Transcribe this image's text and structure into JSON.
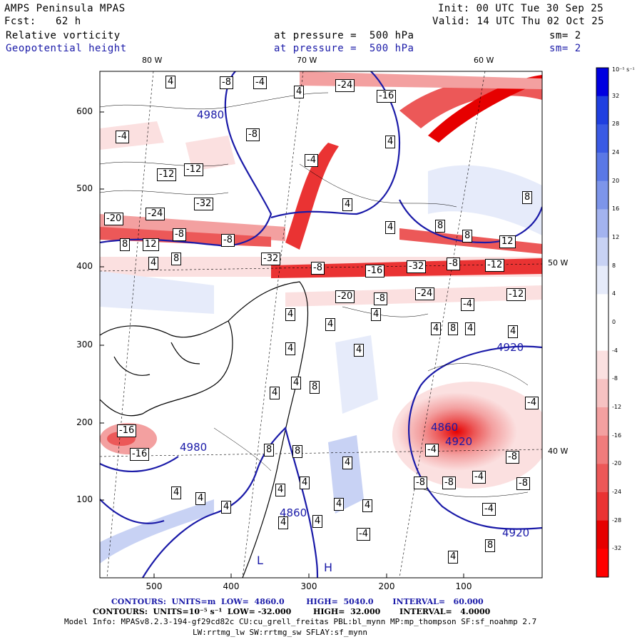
{
  "header": {
    "model": "AMPS Peninsula MPAS",
    "init": "Init: 00 UTC Tue 30 Sep 25",
    "fcst_label": "Fcst:",
    "fcst_value": "62 h",
    "valid": "Valid: 14 UTC Thu 02 Oct 25",
    "field1": "Relative vorticity",
    "field1_level": "at pressure =  500 hPa",
    "field1_sm": "sm= 2",
    "field2": "Geopotential height",
    "field2_level": "at pressure =  500 hPa",
    "field2_sm": "sm= 2"
  },
  "map": {
    "lon_labels": [
      "80 W",
      "70 W",
      "60 W",
      "50 W",
      "40 W"
    ],
    "y_ticks": [
      "600",
      "500",
      "400",
      "300",
      "200",
      "100"
    ],
    "x_ticks": [
      "500",
      "400",
      "300",
      "200",
      "100"
    ],
    "contour_labels": {
      "height": [
        "4920",
        "4980",
        "4920",
        "4980",
        "4860",
        "4920",
        "4860"
      ],
      "vorticity_neg": [
        "-8",
        "-4",
        "-24",
        "-16",
        "-8",
        "-4",
        "-12",
        "-4",
        "-12",
        "-20",
        "-24",
        "-8",
        "-8",
        "-32",
        "-32",
        "-8",
        "-16",
        "-32",
        "-8",
        "-12",
        "-12",
        "-4",
        "-8",
        "-20",
        "-24",
        "-16",
        "-16",
        "-4",
        "-8",
        "-4",
        "-4",
        "-8",
        "-8",
        "-8",
        "-4",
        "-4"
      ],
      "vorticity_pos": [
        "4",
        "4",
        "4",
        "8",
        "4",
        "4",
        "8",
        "8",
        "12",
        "12",
        "8",
        "4",
        "8",
        "4",
        "4",
        "4",
        "4",
        "8",
        "4",
        "4",
        "4",
        "4",
        "4",
        "8",
        "4",
        "8",
        "8",
        "4",
        "4",
        "4",
        "4",
        "4",
        "4",
        "4",
        "4",
        "4",
        "4",
        "8",
        "4"
      ],
      "lows": [
        "L",
        "H"
      ]
    },
    "colors": {
      "height_contour": "#1a1aa8",
      "frame": "#000000",
      "coast": "#000000"
    }
  },
  "colorbar": {
    "unit": "10⁻⁵ s⁻¹",
    "levels": [
      "32",
      "28",
      "24",
      "20",
      "16",
      "12",
      "8",
      "4",
      "0",
      "-4",
      "-8",
      "-12",
      "-16",
      "-20",
      "-24",
      "-28",
      "-32"
    ],
    "colors": [
      "#0000e0",
      "#1f3fe0",
      "#3a5ae4",
      "#5a78e6",
      "#7d95ea",
      "#a3b3ef",
      "#c8d2f4",
      "#e6ebfa",
      "#ffffff",
      "#ffffff",
      "#fbe0e0",
      "#f6c2c2",
      "#f3a0a0",
      "#f07c7c",
      "#ec5858",
      "#ea3333",
      "#e60000",
      "#ff0000"
    ]
  },
  "footer": {
    "line1": "CONTOURS:  UNITS=m  LOW=  4860.0        HIGH=  5040.0       INTERVAL=   60.000",
    "line2": "CONTOURS:  UNITS=10⁻⁵ s⁻¹  LOW= -32.000        HIGH=  32.000       INTERVAL=   4.0000",
    "line3": "Model Info: MPASv8.2.3-194-gf29cd82c CU:cu_grell_freitas PBL:bl_mynn MP:mp_thompson SF:sf_noahmp 2.7",
    "line4": "LW:rrtmg_lw SW:rrtmg_sw SFLAY:sf_mynn"
  }
}
